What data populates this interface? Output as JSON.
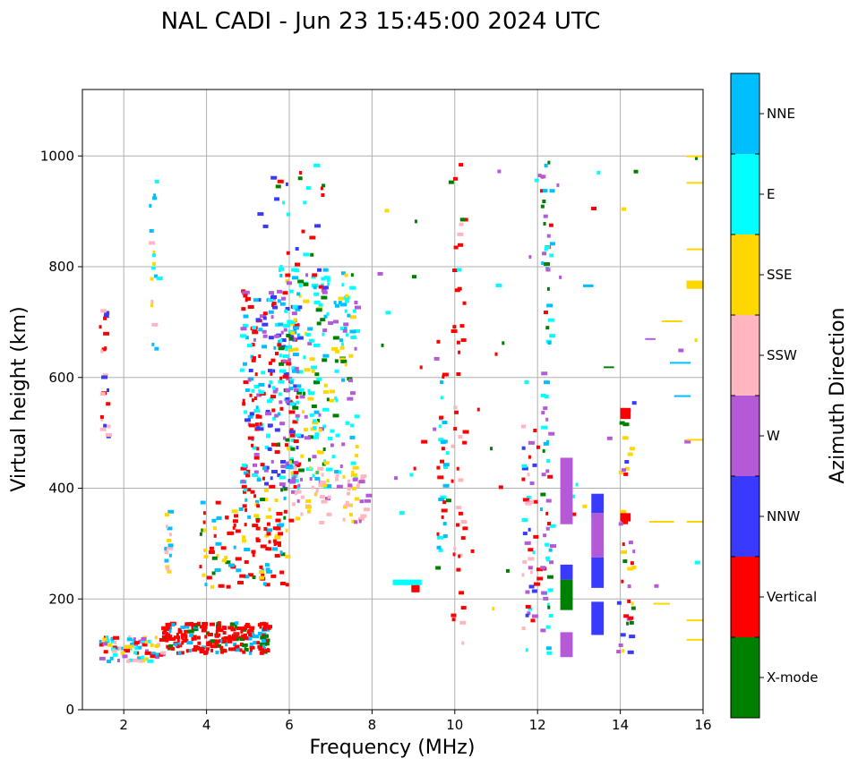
{
  "chart_data": {
    "type": "scatter",
    "title": "NAL CADI - Jun 23 15:45:00 2024 UTC",
    "xlabel": "Frequency (MHz)",
    "ylabel": "Virtual height (km)",
    "xlim": [
      1,
      16
    ],
    "ylim": [
      0,
      1120
    ],
    "xticks": [
      2,
      4,
      6,
      8,
      10,
      12,
      14,
      16
    ],
    "yticks": [
      0,
      200,
      400,
      600,
      800,
      1000
    ],
    "grid": true,
    "colorbar": {
      "label": "Azimuth Direction",
      "categories": [
        {
          "name": "X-mode",
          "color": "#008000"
        },
        {
          "name": "Vertical",
          "color": "#ff0000"
        },
        {
          "name": "NNW",
          "color": "#3a3aff"
        },
        {
          "name": "W",
          "color": "#b45ad6"
        },
        {
          "name": "SSW",
          "color": "#ffb6c1"
        },
        {
          "name": "SSE",
          "color": "#ffd700"
        },
        {
          "name": "E",
          "color": "#00ffff"
        },
        {
          "name": "NNE",
          "color": "#00bfff"
        }
      ]
    },
    "clusters": [
      {
        "name": "e-layer-traces",
        "f": [
          2.9,
          5.5
        ],
        "h": [
          105,
          160
        ],
        "n": 220,
        "colors": [
          "Vertical",
          "Vertical",
          "Vertical",
          "NNE",
          "X-mode",
          "Vertical"
        ]
      },
      {
        "name": "low-spread",
        "f": [
          1.4,
          2.9
        ],
        "h": [
          90,
          135
        ],
        "n": 80,
        "colors": [
          "NNE",
          "SSE",
          "SSW",
          "E",
          "Vertical",
          "W"
        ]
      },
      {
        "name": "f-layer-rise",
        "f": [
          3.8,
          6.0
        ],
        "h": [
          225,
          400
        ],
        "n": 130,
        "colors": [
          "Vertical",
          "Vertical",
          "X-mode",
          "SSE",
          "NNE"
        ]
      },
      {
        "name": "f-layer-spread",
        "f": [
          4.8,
          6.2
        ],
        "h": [
          400,
          760
        ],
        "n": 240,
        "colors": [
          "Vertical",
          "Vertical",
          "NNW",
          "E",
          "NNE",
          "W"
        ]
      },
      {
        "name": "f-layer-e-spread",
        "f": [
          5.7,
          7.6
        ],
        "h": [
          400,
          800
        ],
        "n": 240,
        "colors": [
          "E",
          "E",
          "NNE",
          "X-mode",
          "SSE",
          "W"
        ]
      },
      {
        "name": "ssw-patch",
        "f": [
          6.0,
          7.9
        ],
        "h": [
          340,
          440
        ],
        "n": 70,
        "colors": [
          "SSW",
          "SSW",
          "W",
          "SSE"
        ]
      },
      {
        "name": "tall-f-trace",
        "f": [
          5.2,
          6.8
        ],
        "h": [
          760,
          990
        ],
        "n": 35,
        "colors": [
          "NNW",
          "E",
          "X-mode",
          "Vertical"
        ]
      },
      {
        "name": "column-1-5",
        "f": [
          1.4,
          1.6
        ],
        "h": [
          490,
          750
        ],
        "n": 22,
        "colors": [
          "Vertical",
          "NNW",
          "SSW"
        ]
      },
      {
        "name": "column-2-7",
        "f": [
          2.6,
          2.8
        ],
        "h": [
          640,
          1000
        ],
        "n": 18,
        "colors": [
          "SSE",
          "E",
          "SSW",
          "NNE"
        ]
      },
      {
        "name": "column-3",
        "f": [
          2.95,
          3.1
        ],
        "h": [
          250,
          380
        ],
        "n": 16,
        "colors": [
          "SSW",
          "SSE",
          "NNE"
        ]
      },
      {
        "name": "column-10",
        "f": [
          9.9,
          10.2
        ],
        "h": [
          100,
          1000
        ],
        "n": 45,
        "colors": [
          "Vertical",
          "SSW",
          "Vertical"
        ]
      },
      {
        "name": "column-9-7",
        "f": [
          9.55,
          9.75
        ],
        "h": [
          270,
          680
        ],
        "n": 28,
        "colors": [
          "Vertical",
          "NNE",
          "E"
        ]
      },
      {
        "name": "column-11-8",
        "f": [
          11.6,
          12.0
        ],
        "h": [
          100,
          520
        ],
        "n": 45,
        "colors": [
          "W",
          "NNW",
          "Vertical",
          "SSW",
          "E"
        ]
      },
      {
        "name": "column-12-2",
        "f": [
          12.05,
          12.3
        ],
        "h": [
          100,
          1000
        ],
        "n": 75,
        "colors": [
          "NNE",
          "X-mode",
          "E",
          "Vertical",
          "W"
        ]
      },
      {
        "name": "column-14-1",
        "f": [
          13.9,
          14.3
        ],
        "h": [
          100,
          560
        ],
        "n": 40,
        "colors": [
          "Vertical",
          "SSE",
          "W",
          "X-mode",
          "NNW"
        ]
      },
      {
        "name": "sparse-high",
        "f": [
          8.0,
          16.0
        ],
        "h": [
          150,
          1000
        ],
        "n": 55,
        "colors": [
          "SSE",
          "Vertical",
          "E",
          "W",
          "X-mode"
        ]
      }
    ],
    "segments": [
      {
        "f": 12.55,
        "f2": 12.85,
        "h": 335,
        "h2": 455,
        "color": "W"
      },
      {
        "f": 12.55,
        "f2": 12.85,
        "h": 180,
        "h2": 235,
        "color": "X-mode"
      },
      {
        "f": 12.55,
        "f2": 12.85,
        "h": 235,
        "h2": 262,
        "color": "NNW"
      },
      {
        "f": 12.55,
        "f2": 12.85,
        "h": 95,
        "h2": 140,
        "color": "W"
      },
      {
        "f": 13.3,
        "f2": 13.6,
        "h": 355,
        "h2": 390,
        "color": "NNW"
      },
      {
        "f": 13.3,
        "f2": 13.6,
        "h": 275,
        "h2": 355,
        "color": "W"
      },
      {
        "f": 13.3,
        "f2": 13.6,
        "h": 220,
        "h2": 275,
        "color": "NNW"
      },
      {
        "f": 13.3,
        "f2": 13.6,
        "h": 135,
        "h2": 195,
        "color": "NNW"
      },
      {
        "f": 8.5,
        "f2": 9.2,
        "h": 225,
        "h2": 235,
        "color": "E"
      },
      {
        "f": 8.95,
        "f2": 9.15,
        "h": 212,
        "h2": 225,
        "color": "Vertical"
      },
      {
        "f": 14.0,
        "f2": 14.25,
        "h": 525,
        "h2": 545,
        "color": "Vertical"
      },
      {
        "f": 14.0,
        "f2": 14.25,
        "h": 340,
        "h2": 355,
        "color": "Vertical"
      },
      {
        "f": 15.2,
        "f2": 15.7,
        "h": 625,
        "h2": 628,
        "color": "NNE"
      },
      {
        "f": 15.3,
        "f2": 15.7,
        "h": 565,
        "h2": 568,
        "color": "NNE"
      },
      {
        "f": 15.0,
        "f2": 15.5,
        "h": 700,
        "h2": 703,
        "color": "SSE"
      },
      {
        "f": 14.7,
        "f2": 15.3,
        "h": 338,
        "h2": 341,
        "color": "SSE"
      },
      {
        "f": 15.6,
        "f2": 16.0,
        "h": 760,
        "h2": 775,
        "color": "SSE"
      },
      {
        "f": 15.6,
        "f2": 16.0,
        "h": 486,
        "h2": 489,
        "color": "SSE"
      },
      {
        "f": 15.6,
        "f2": 16.0,
        "h": 338,
        "h2": 341,
        "color": "SSE"
      },
      {
        "f": 15.6,
        "f2": 16.0,
        "h": 160,
        "h2": 163,
        "color": "SSE"
      },
      {
        "f": 15.6,
        "f2": 16.0,
        "h": 125,
        "h2": 128,
        "color": "SSE"
      },
      {
        "f": 15.6,
        "f2": 16.0,
        "h": 950,
        "h2": 953,
        "color": "SSE"
      },
      {
        "f": 15.6,
        "f2": 16.0,
        "h": 998,
        "h2": 1001,
        "color": "SSE"
      },
      {
        "f": 15.6,
        "f2": 16.0,
        "h": 830,
        "h2": 833,
        "color": "SSE"
      },
      {
        "f": 13.1,
        "f2": 13.35,
        "h": 763,
        "h2": 768,
        "color": "NNE"
      },
      {
        "f": 14.8,
        "f2": 15.2,
        "h": 190,
        "h2": 193,
        "color": "SSE"
      },
      {
        "f": 14.6,
        "f2": 14.85,
        "h": 668,
        "h2": 671,
        "color": "W"
      },
      {
        "f": 13.6,
        "f2": 13.85,
        "h": 617,
        "h2": 620,
        "color": "X-mode"
      }
    ]
  }
}
